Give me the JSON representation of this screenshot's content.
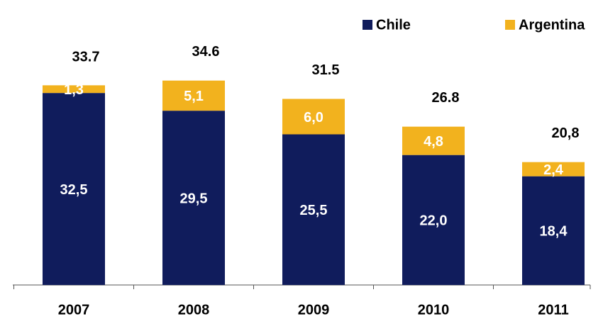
{
  "chart_data": {
    "type": "stacked_bar",
    "categories": [
      "2007",
      "2008",
      "2009",
      "2010",
      "2011"
    ],
    "series": [
      {
        "name": "Chile",
        "color": "#101c5c",
        "values": [
          32.5,
          29.5,
          25.5,
          22.0,
          18.4
        ],
        "value_labels": [
          "32,5",
          "29,5",
          "25,5",
          "22,0",
          "18,4"
        ]
      },
      {
        "name": "Argentina",
        "color": "#f2b21e",
        "values": [
          1.3,
          5.1,
          6.0,
          4.8,
          2.4
        ],
        "value_labels": [
          "1,3",
          "5,1",
          "6,0",
          "4,8",
          "2,4"
        ]
      }
    ],
    "totals": [
      33.7,
      34.6,
      31.5,
      26.8,
      {
        "value": 20.8,
        "label": "20,8"
      }
    ],
    "ylim": [
      0,
      45
    ],
    "grid": false,
    "legend": "top-right"
  }
}
